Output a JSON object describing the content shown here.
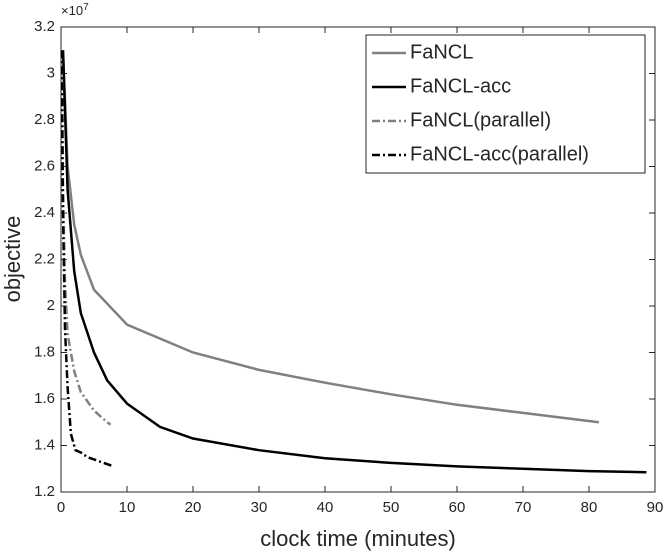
{
  "chart_data": {
    "type": "line",
    "x_label": "clock time (minutes)",
    "y_label": "objective",
    "y_scale_label": {
      "base": "×10",
      "exponent": "7"
    },
    "xlim": [
      0,
      90
    ],
    "xticks": [
      0,
      10,
      20,
      30,
      40,
      50,
      60,
      70,
      80,
      90
    ],
    "ylim": [
      1.2,
      3.2
    ],
    "yticks": [
      1.2,
      1.4,
      1.6,
      1.8,
      2,
      2.2,
      2.4,
      2.6,
      2.8,
      3,
      3.2
    ],
    "legend": "upper-right",
    "series": [
      {
        "name": "FaNCL",
        "color": "#808080",
        "style": "solid",
        "x": [
          0.3,
          1,
          2,
          3,
          5,
          10,
          20,
          30,
          40,
          50,
          60,
          70,
          81.5
        ],
        "values": [
          3.1,
          2.6,
          2.35,
          2.22,
          2.07,
          1.92,
          1.8,
          1.725,
          1.67,
          1.62,
          1.575,
          1.54,
          1.5
        ]
      },
      {
        "name": "FaNCL-acc",
        "color": "#000000",
        "style": "solid",
        "x": [
          0.3,
          1,
          2,
          3,
          5,
          7,
          10,
          15,
          20,
          30,
          40,
          50,
          60,
          70,
          80,
          88.7
        ],
        "values": [
          3.1,
          2.5,
          2.15,
          1.97,
          1.8,
          1.68,
          1.58,
          1.48,
          1.43,
          1.38,
          1.345,
          1.325,
          1.31,
          1.3,
          1.29,
          1.285
        ]
      },
      {
        "name": "FaNCL(parallel)",
        "color": "#808080",
        "style": "dashdot",
        "x": [
          0.1,
          0.3,
          0.6,
          1,
          2,
          3,
          5,
          7,
          7.5
        ],
        "values": [
          3.1,
          2.5,
          2.1,
          1.88,
          1.72,
          1.63,
          1.55,
          1.5,
          1.49
        ]
      },
      {
        "name": "FaNCL-acc(parallel)",
        "color": "#000000",
        "style": "dashdot",
        "x": [
          0.1,
          0.3,
          0.6,
          1,
          1.5,
          2.2,
          3,
          4,
          6,
          8
        ],
        "values": [
          3.1,
          2.4,
          1.9,
          1.65,
          1.45,
          1.38,
          1.37,
          1.35,
          1.33,
          1.31
        ]
      }
    ]
  }
}
